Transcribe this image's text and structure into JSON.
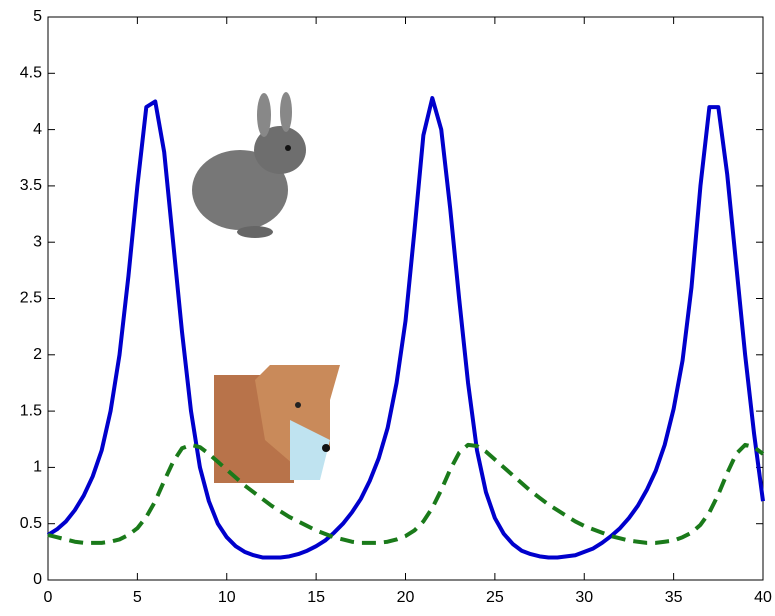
{
  "chart_data": {
    "type": "line",
    "x": [
      0,
      0.5,
      1,
      1.5,
      2,
      2.5,
      3,
      3.5,
      4,
      4.5,
      5,
      5.5,
      6,
      6.5,
      7,
      7.5,
      8,
      8.5,
      9,
      9.5,
      10,
      10.5,
      11,
      11.5,
      12,
      12.5,
      13,
      13.5,
      14,
      14.5,
      15,
      15.5,
      16,
      16.5,
      17,
      17.5,
      18,
      18.5,
      19,
      19.5,
      20,
      20.5,
      21,
      21.5,
      22,
      22.5,
      23,
      23.5,
      24,
      24.5,
      25,
      25.5,
      26,
      26.5,
      27,
      27.5,
      28,
      28.5,
      29,
      29.5,
      30,
      30.5,
      31,
      31.5,
      32,
      32.5,
      33,
      33.5,
      34,
      34.5,
      35,
      35.5,
      36,
      36.5,
      37,
      37.5,
      38,
      38.5,
      39,
      39.5,
      40
    ],
    "series": [
      {
        "color": "#0000cc",
        "dash": false,
        "values": [
          0.4,
          0.45,
          0.52,
          0.62,
          0.75,
          0.92,
          1.15,
          1.5,
          2.0,
          2.7,
          3.5,
          4.2,
          4.25,
          3.8,
          3.0,
          2.2,
          1.5,
          1.0,
          0.7,
          0.5,
          0.38,
          0.3,
          0.25,
          0.22,
          0.2,
          0.2,
          0.2,
          0.21,
          0.23,
          0.26,
          0.3,
          0.35,
          0.42,
          0.5,
          0.6,
          0.72,
          0.88,
          1.08,
          1.35,
          1.75,
          2.3,
          3.1,
          3.95,
          4.28,
          4.0,
          3.3,
          2.5,
          1.75,
          1.15,
          0.78,
          0.55,
          0.41,
          0.32,
          0.26,
          0.23,
          0.21,
          0.2,
          0.2,
          0.21,
          0.22,
          0.25,
          0.28,
          0.33,
          0.39,
          0.46,
          0.55,
          0.66,
          0.8,
          0.97,
          1.2,
          1.52,
          1.95,
          2.6,
          3.5,
          4.2,
          4.2,
          3.6,
          2.8,
          2.0,
          1.3,
          0.7
        ]
      },
      {
        "color": "#1a7a1a",
        "dash": true,
        "values": [
          0.4,
          0.38,
          0.36,
          0.34,
          0.33,
          0.33,
          0.33,
          0.34,
          0.36,
          0.4,
          0.46,
          0.56,
          0.7,
          0.88,
          1.05,
          1.17,
          1.2,
          1.18,
          1.12,
          1.05,
          0.98,
          0.91,
          0.84,
          0.78,
          0.72,
          0.66,
          0.61,
          0.56,
          0.52,
          0.48,
          0.44,
          0.41,
          0.38,
          0.36,
          0.34,
          0.33,
          0.33,
          0.33,
          0.34,
          0.36,
          0.39,
          0.44,
          0.52,
          0.64,
          0.8,
          0.98,
          1.13,
          1.2,
          1.19,
          1.14,
          1.07,
          1.0,
          0.93,
          0.86,
          0.79,
          0.73,
          0.67,
          0.62,
          0.57,
          0.52,
          0.48,
          0.45,
          0.42,
          0.39,
          0.37,
          0.35,
          0.34,
          0.33,
          0.33,
          0.34,
          0.35,
          0.38,
          0.42,
          0.49,
          0.6,
          0.76,
          0.95,
          1.12,
          1.2,
          1.18,
          1.12
        ]
      }
    ],
    "xlim": [
      0,
      40
    ],
    "xticks": [
      0,
      5,
      10,
      15,
      20,
      25,
      30,
      35,
      40
    ],
    "ylim": [
      0,
      5
    ],
    "yticks": [
      0,
      0.5,
      1,
      1.5,
      2,
      2.5,
      3,
      3.5,
      4,
      4.5,
      5
    ],
    "grid": false
  }
}
